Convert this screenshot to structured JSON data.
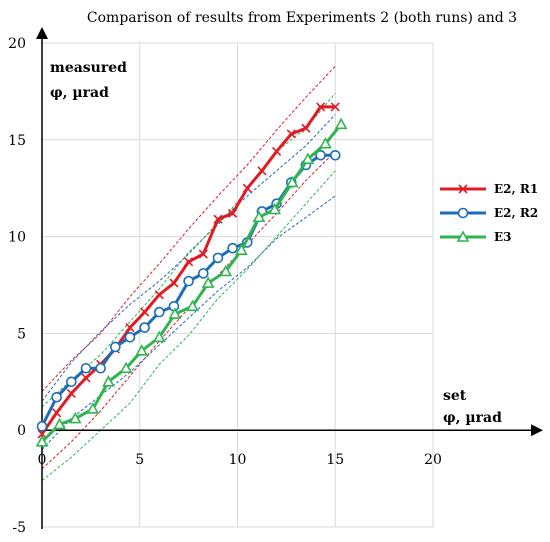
{
  "chart_data": {
    "type": "line",
    "title": "Comparison of results from Experiments 2 (both runs) and 3",
    "xlabel": {
      "line1": "set",
      "line2": "φ, µrad"
    },
    "ylabel": {
      "line1": "measured",
      "line2": "φ, µrad"
    },
    "xlim": [
      0,
      20
    ],
    "ylim": [
      -5,
      20
    ],
    "xticks": [
      0,
      5,
      10,
      15,
      20
    ],
    "yticks": [
      -5,
      0,
      5,
      10,
      15,
      20
    ],
    "grid": true,
    "legend_position": "right",
    "series": [
      {
        "name": "E2, R1",
        "color": "#e01b24",
        "marker": "x",
        "x": [
          0,
          0.75,
          1.5,
          2.25,
          3.0,
          3.75,
          4.5,
          5.25,
          6.0,
          6.75,
          7.5,
          8.25,
          9.0,
          9.75,
          10.5,
          11.25,
          12.0,
          12.75,
          13.5,
          14.25,
          15.0
        ],
        "y": [
          -0.2,
          0.9,
          1.9,
          2.7,
          3.4,
          4.2,
          5.3,
          6.1,
          7.0,
          7.6,
          8.7,
          9.1,
          10.9,
          11.2,
          12.5,
          13.4,
          14.4,
          15.3,
          15.6,
          16.7,
          16.7
        ]
      },
      {
        "name": "E2, R2",
        "color": "#1c6db8",
        "marker": "o",
        "x": [
          0,
          0.75,
          1.5,
          2.25,
          3.0,
          3.75,
          4.5,
          5.25,
          6.0,
          6.75,
          7.5,
          8.25,
          9.0,
          9.75,
          10.5,
          11.25,
          12.0,
          12.75,
          13.5,
          14.25,
          15.0
        ],
        "y": [
          0.2,
          1.7,
          2.5,
          3.2,
          3.2,
          4.3,
          4.8,
          5.3,
          6.1,
          6.4,
          7.7,
          8.1,
          8.9,
          9.4,
          9.7,
          11.3,
          11.7,
          12.8,
          13.7,
          14.2,
          14.2
        ]
      },
      {
        "name": "E3",
        "color": "#2fb550",
        "marker": "triangle",
        "x": [
          0,
          0.9,
          1.7,
          2.6,
          3.4,
          4.3,
          5.1,
          6.0,
          6.8,
          7.7,
          8.5,
          9.4,
          10.2,
          11.1,
          11.9,
          12.8,
          13.6,
          14.5,
          15.3
        ],
        "y": [
          -0.6,
          0.3,
          0.6,
          1.1,
          2.5,
          3.2,
          4.1,
          4.8,
          6.0,
          6.4,
          7.6,
          8.2,
          9.3,
          11.0,
          11.4,
          12.8,
          14.0,
          14.8,
          15.8
        ]
      }
    ],
    "bands": [
      {
        "color": "#e01b24",
        "x": [
          0,
          1.5,
          3.0,
          4.5,
          6.0,
          7.5,
          9.0,
          10.5,
          12.0,
          13.5,
          15.0
        ],
        "y": [
          2.0,
          3.6,
          5.0,
          6.9,
          8.6,
          10.4,
          12.1,
          13.7,
          15.5,
          17.2,
          18.8
        ]
      },
      {
        "color": "#e01b24",
        "x": [
          0,
          1.5,
          3.0,
          4.5,
          6.0,
          7.5,
          9.0,
          10.5,
          12.0,
          13.5,
          15.0
        ],
        "y": [
          -2.0,
          -0.6,
          1.0,
          2.8,
          4.6,
          6.3,
          8.0,
          9.6,
          11.2,
          12.9,
          14.4
        ]
      },
      {
        "color": "#1c6db8",
        "x": [
          0,
          1.5,
          3.0,
          4.5,
          6.0,
          7.5,
          9.0,
          10.5,
          12.0,
          13.5,
          15.0
        ],
        "y": [
          1.5,
          3.5,
          5.1,
          6.5,
          7.7,
          9.1,
          10.7,
          12.1,
          13.4,
          14.7,
          16.3
        ]
      },
      {
        "color": "#1c6db8",
        "x": [
          0,
          1.5,
          3.0,
          4.5,
          6.0,
          7.5,
          9.0,
          10.5,
          12.0,
          13.5,
          15.0
        ],
        "y": [
          -1.0,
          0.6,
          1.8,
          3.0,
          4.4,
          5.8,
          7.2,
          8.4,
          9.9,
          11.0,
          12.1
        ]
      },
      {
        "color": "#2fb550",
        "x": [
          0,
          1.5,
          3.0,
          4.5,
          6.0,
          7.5,
          9.0,
          10.5,
          12.0,
          13.5,
          15.0
        ],
        "y": [
          1.2,
          2.6,
          3.9,
          5.6,
          7.3,
          9.2,
          10.6,
          12.4,
          14.4,
          15.6,
          17.4
        ]
      },
      {
        "color": "#2fb550",
        "x": [
          0,
          1.5,
          3.0,
          4.5,
          6.0,
          7.5,
          9.0,
          10.5,
          12.0,
          13.5,
          15.0
        ],
        "y": [
          -2.6,
          -1.4,
          0.0,
          1.4,
          3.4,
          4.9,
          6.8,
          8.3,
          10.0,
          11.7,
          13.4
        ]
      }
    ]
  }
}
